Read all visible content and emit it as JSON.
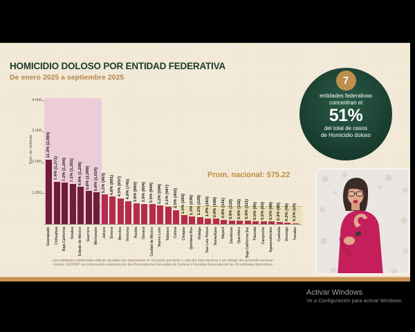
{
  "slide": {
    "title": "HOMICIDIO DOLOSO POR ENTIDAD FEDERATIVA",
    "subtitle": "De enero 2025 a septiembre 2025",
    "footnote_line1": "Las entidades sombreadas indican aquellas que representan el cincuenta porciento o más del total nacional o por debajo del promedio nacional.",
    "footnote_line2": "Fuente: SESNSP con información reportada por las Procuradurías Generales de Justicia o Fiscalías Generales de las 32 entidades federativas."
  },
  "badge": {
    "number": "7",
    "line1": "entidades federativas",
    "line2": "concentran el",
    "percent": "51%",
    "line3": "del total de casos",
    "line4": "de Homicidio doloso"
  },
  "chart_data": {
    "type": "bar",
    "title": "HOMICIDIO DOLOSO POR ENTIDAD FEDERATIVA",
    "subtitle": "De enero 2025 a septiembre 2025",
    "ylabel": "Núm. de víctimas",
    "ylim": [
      0,
      4000
    ],
    "yticks": [
      {
        "value": 4000,
        "label": "4,000"
      },
      {
        "value": 3000,
        "label": "3,000"
      },
      {
        "value": 2000,
        "label": "2,000"
      },
      {
        "value": 1000,
        "label": "1,000"
      }
    ],
    "national_average": {
      "value": 575.22,
      "label": "Prom. nacional: 575.22"
    },
    "highlight": {
      "top_n_dark_shaded": 7,
      "below_average_start_index": 17
    },
    "bars": [
      {
        "state": "Guanajuato",
        "value": 2084,
        "label": "11.3% (2,084)"
      },
      {
        "state": "Chihuahua",
        "value": 1371,
        "label": "7.4% (1,371)"
      },
      {
        "state": "Baja California",
        "value": 1344,
        "label": "7.3% (1,344)"
      },
      {
        "state": "Sinaloa",
        "value": 1302,
        "label": "7.1% (1,302)"
      },
      {
        "state": "Estado de México",
        "value": 1208,
        "label": "6.6% (1,208)"
      },
      {
        "state": "Guerrero",
        "value": 1069,
        "label": "5.8% (1,069)"
      },
      {
        "state": "Michoacán",
        "value": 1024,
        "label": "5.6% (1,024)"
      },
      {
        "state": "Jalisco",
        "value": 963,
        "label": "5.2% (963)"
      },
      {
        "state": "Sonora",
        "value": 891,
        "label": "4.8% (891)"
      },
      {
        "state": "Morelos",
        "value": 837,
        "label": "4.5% (837)"
      },
      {
        "state": "Veracruz",
        "value": 745,
        "label": "4.0% (745)"
      },
      {
        "state": "Puebla",
        "value": 663,
        "label": "3.6% (663)"
      },
      {
        "state": "Oaxaca",
        "value": 654,
        "label": "3.6% (654)"
      },
      {
        "state": "Ciudad de México",
        "value": 644,
        "label": "3.5% (644)"
      },
      {
        "state": "Nuevo León",
        "value": 594,
        "label": "3.2% (594)"
      },
      {
        "state": "Tabasco",
        "value": 567,
        "label": "3.1% (567)"
      },
      {
        "state": "Colima",
        "value": 452,
        "label": "2.5% (452)"
      },
      {
        "state": "Chiapas",
        "value": 283,
        "label": "1.5% (283)"
      },
      {
        "state": "Quintana Roo",
        "value": 236,
        "label": "1.3% (236)"
      },
      {
        "state": "Hidalgo",
        "value": 229,
        "label": "1.2% (229)"
      },
      {
        "state": "San Luis Potosí",
        "value": 183,
        "label": "1.0% (183)"
      },
      {
        "state": "Tamaulipas",
        "value": 168,
        "label": "0.9% (168)"
      },
      {
        "state": "Nayarit",
        "value": 141,
        "label": "0.8% (141)"
      },
      {
        "state": "Zacatecas",
        "value": 119,
        "label": "0.6% (119)"
      },
      {
        "state": "Querétaro",
        "value": 118,
        "label": "0.6% (118)"
      },
      {
        "state": "Baja California Sur",
        "value": 111,
        "label": "0.6% (111)"
      },
      {
        "state": "Tlaxcala",
        "value": 95,
        "label": "0.5% (95)"
      },
      {
        "state": "Campeche",
        "value": 93,
        "label": "0.5% (93)"
      },
      {
        "state": "Aguascalientes",
        "value": 88,
        "label": "0.5% (88)"
      },
      {
        "state": "Coahuila",
        "value": 60,
        "label": "0.3% (60)"
      },
      {
        "state": "Durango",
        "value": 48,
        "label": "0.3% (48)"
      },
      {
        "state": "Yucatán",
        "value": 23,
        "label": "0.1% (23)"
      }
    ]
  },
  "windows_watermark": {
    "title": "Activar Windows",
    "subtitle": "Ve a Configuración para activar Windows."
  },
  "colors": {
    "slide_bg": "#f3ead9",
    "title_green": "#1b3a2a",
    "accent_gold": "#b5854b",
    "bar_dark": "#6e1d3b",
    "bar_light": "#b32c4e",
    "region_pink": "#ecccd8",
    "region_yellow": "rgba(232,222,180,0.78)",
    "avg_line_gold": "#c9a23f",
    "badge_green_dark": "#16382b",
    "badge_gold": "#bd8f4e",
    "footer_gold_bar": "#c79253"
  }
}
